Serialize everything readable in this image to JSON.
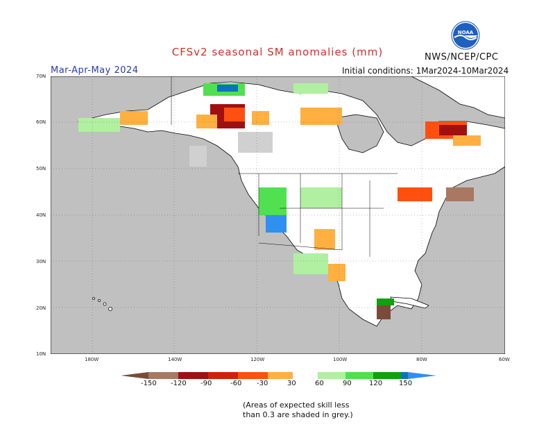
{
  "header": {
    "title": "CFSv2 seasonal SM anomalies (mm)",
    "season": "Mar-Apr-May 2024",
    "agency": "NWS/NCEP/CPC",
    "initial_conditions": "Initial conditions: 1Mar2024-10Mar2024",
    "logo_text": "NOAA"
  },
  "map": {
    "lat_labels": [
      "70N",
      "60N",
      "50N",
      "40N",
      "30N",
      "20N",
      "10N"
    ],
    "lon_labels": [
      "180W",
      "140W",
      "120W",
      "100W",
      "80W",
      "60W"
    ],
    "ocean_color": "#c0c0c0",
    "land_color": "#ffffff",
    "region": "North America"
  },
  "legend": {
    "labels": [
      "-150",
      "-120",
      "-90",
      "-60",
      "-30",
      "30",
      "60",
      "90",
      "120",
      "150"
    ],
    "colors": [
      "#7a4b3a",
      "#a87863",
      "#a01010",
      "#d02010",
      "#ff5010",
      "#ffb040",
      "#ffffff",
      "#b0f0a0",
      "#50e050",
      "#10a010",
      "#1070c0",
      "#3090f0"
    ]
  },
  "note": {
    "line1": "(Areas of expected skill less",
    "line2": "than 0.3 are shaded in grey.)"
  }
}
